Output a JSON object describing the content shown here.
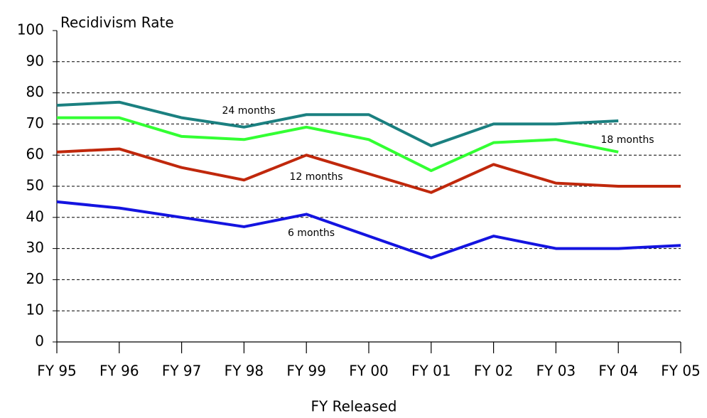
{
  "chart_data": {
    "type": "line",
    "title": "Recidivism Rate",
    "x_label": "FY Released",
    "categories": [
      "FY 95",
      "FY 96",
      "FY 97",
      "FY 98",
      "FY 99",
      "FY 00",
      "FY 01",
      "FY 02",
      "FY 03",
      "FY 04",
      "FY 05"
    ],
    "series": [
      {
        "name": "24 months",
        "color": "#1b8080",
        "values": [
          76,
          77,
          72,
          69,
          73,
          73,
          63,
          70,
          70,
          71,
          null
        ]
      },
      {
        "name": "18 months",
        "color": "#33ff33",
        "values": [
          72,
          72,
          66,
          65,
          69,
          65,
          55,
          64,
          65,
          61,
          null
        ]
      },
      {
        "name": "12 months",
        "color": "#c0280c",
        "values": [
          61,
          62,
          56,
          52,
          60,
          54,
          48,
          57,
          51,
          50,
          50
        ]
      },
      {
        "name": "6 months",
        "color": "#1414e0",
        "values": [
          45,
          43,
          40,
          37,
          41,
          34,
          27,
          34,
          30,
          30,
          31
        ]
      }
    ],
    "ylim": [
      0,
      100
    ],
    "yticks": [
      0,
      10,
      20,
      30,
      40,
      50,
      60,
      70,
      80,
      90,
      100
    ],
    "grid": true
  }
}
